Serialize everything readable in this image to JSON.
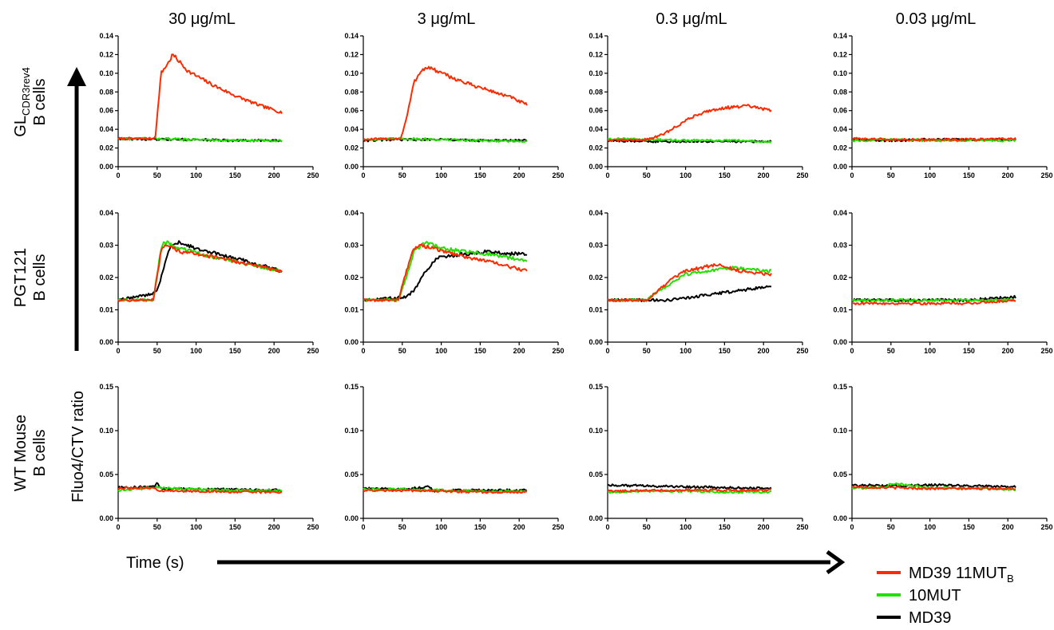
{
  "figure": {
    "column_titles": [
      "30 μg/mL",
      "3 μg/mL",
      "0.3 μg/mL",
      "0.03 μg/mL"
    ],
    "rows": [
      {
        "line1": "GL",
        "line1_sub": "CDR3rev4",
        "line2": "B cells"
      },
      {
        "line1": "PGT121",
        "line1_sub": "",
        "line2": "B cells"
      },
      {
        "line1": "WT Mouse",
        "line1_sub": "",
        "line2": "B cells"
      }
    ],
    "y_axis_title": "Fluo4/CTV ratio",
    "x_axis_title": "Time (s)",
    "legend": [
      {
        "label": "MD39 11MUT",
        "sub": "B",
        "color": "#ff2a00"
      },
      {
        "label": "10MUT",
        "sub": "",
        "color": "#22e000"
      },
      {
        "label": "MD39",
        "sub": "",
        "color": "#000000"
      }
    ]
  },
  "chart_data": {
    "type": "line",
    "x_range": [
      0,
      250
    ],
    "x_ticks": [
      "0",
      "50",
      "100",
      "150",
      "200",
      "250"
    ],
    "row_axes": [
      {
        "ylim": [
          0,
          0.14
        ],
        "y_ticks": [
          "0.00",
          "0.02",
          "0.04",
          "0.06",
          "0.08",
          "0.10",
          "0.12",
          "0.14"
        ]
      },
      {
        "ylim": [
          0,
          0.04
        ],
        "y_ticks": [
          "0.00",
          "0.01",
          "0.02",
          "0.03",
          "0.04"
        ]
      },
      {
        "ylim": [
          0,
          0.15
        ],
        "y_ticks": [
          "0.00",
          "0.05",
          "0.10",
          "0.15"
        ]
      }
    ],
    "series_names": [
      "MD39 11MUT",
      "10MUT",
      "MD39"
    ],
    "series_colors": [
      "#ff2a00",
      "#22e000",
      "#000000"
    ],
    "panels": [
      {
        "row": 0,
        "col": 0,
        "series": [
          {
            "name": "MD39 11MUT",
            "x": [
              0,
              45,
              48,
              55,
              65,
              70,
              90,
              120,
              150,
              180,
              210
            ],
            "y": [
              0.03,
              0.03,
              0.034,
              0.1,
              0.112,
              0.12,
              0.102,
              0.088,
              0.076,
              0.066,
              0.058
            ]
          },
          {
            "name": "10MUT",
            "x": [
              0,
              50,
              100,
              150,
              210
            ],
            "y": [
              0.03,
              0.03,
              0.029,
              0.028,
              0.028
            ]
          },
          {
            "name": "MD39",
            "x": [
              0,
              50,
              100,
              150,
              210
            ],
            "y": [
              0.03,
              0.029,
              0.029,
              0.028,
              0.028
            ]
          }
        ]
      },
      {
        "row": 0,
        "col": 1,
        "series": [
          {
            "name": "MD39 11MUT",
            "x": [
              0,
              48,
              55,
              65,
              75,
              85,
              100,
              130,
              160,
              190,
              210
            ],
            "y": [
              0.029,
              0.03,
              0.05,
              0.09,
              0.104,
              0.106,
              0.1,
              0.09,
              0.082,
              0.074,
              0.066
            ]
          },
          {
            "name": "10MUT",
            "x": [
              0,
              50,
              100,
              150,
              210
            ],
            "y": [
              0.029,
              0.03,
              0.029,
              0.028,
              0.027
            ]
          },
          {
            "name": "MD39",
            "x": [
              0,
              50,
              100,
              150,
              210
            ],
            "y": [
              0.028,
              0.029,
              0.029,
              0.028,
              0.028
            ]
          }
        ]
      },
      {
        "row": 0,
        "col": 2,
        "series": [
          {
            "name": "MD39 11MUT",
            "x": [
              0,
              50,
              70,
              90,
              110,
              130,
              150,
              180,
              210
            ],
            "y": [
              0.028,
              0.029,
              0.034,
              0.044,
              0.054,
              0.06,
              0.063,
              0.065,
              0.06
            ]
          },
          {
            "name": "10MUT",
            "x": [
              0,
              50,
              100,
              150,
              210
            ],
            "y": [
              0.03,
              0.029,
              0.028,
              0.028,
              0.027
            ]
          },
          {
            "name": "MD39",
            "x": [
              0,
              50,
              100,
              150,
              210
            ],
            "y": [
              0.028,
              0.027,
              0.027,
              0.027,
              0.027
            ]
          }
        ]
      },
      {
        "row": 0,
        "col": 3,
        "series": [
          {
            "name": "MD39 11MUT",
            "x": [
              0,
              50,
              100,
              150,
              210
            ],
            "y": [
              0.03,
              0.029,
              0.029,
              0.029,
              0.03
            ]
          },
          {
            "name": "10MUT",
            "x": [
              0,
              50,
              100,
              150,
              210
            ],
            "y": [
              0.028,
              0.029,
              0.028,
              0.028,
              0.028
            ]
          },
          {
            "name": "MD39",
            "x": [
              0,
              50,
              100,
              150,
              210
            ],
            "y": [
              0.029,
              0.028,
              0.029,
              0.029,
              0.029
            ]
          }
        ]
      },
      {
        "row": 1,
        "col": 0,
        "series": [
          {
            "name": "MD39 11MUT",
            "x": [
              0,
              45,
              50,
              55,
              60,
              80,
              110,
              150,
              210
            ],
            "y": [
              0.013,
              0.013,
              0.02,
              0.028,
              0.03,
              0.028,
              0.027,
              0.025,
              0.022
            ]
          },
          {
            "name": "10MUT",
            "x": [
              0,
              45,
              50,
              55,
              60,
              80,
              110,
              150,
              210
            ],
            "y": [
              0.013,
              0.013,
              0.021,
              0.029,
              0.031,
              0.029,
              0.027,
              0.025,
              0.022
            ]
          },
          {
            "name": "MD39",
            "x": [
              0,
              45,
              50,
              60,
              65,
              75,
              100,
              150,
              210
            ],
            "y": [
              0.013,
              0.015,
              0.016,
              0.024,
              0.029,
              0.031,
              0.029,
              0.026,
              0.022
            ]
          }
        ]
      },
      {
        "row": 1,
        "col": 1,
        "series": [
          {
            "name": "MD39 11MUT",
            "x": [
              0,
              45,
              55,
              65,
              75,
              90,
              120,
              160,
              210
            ],
            "y": [
              0.013,
              0.013,
              0.022,
              0.029,
              0.03,
              0.029,
              0.027,
              0.025,
              0.022
            ]
          },
          {
            "name": "10MUT",
            "x": [
              0,
              45,
              55,
              65,
              80,
              100,
              130,
              170,
              210
            ],
            "y": [
              0.013,
              0.013,
              0.02,
              0.028,
              0.031,
              0.029,
              0.028,
              0.027,
              0.025
            ]
          },
          {
            "name": "MD39",
            "x": [
              0,
              55,
              65,
              80,
              95,
              120,
              160,
              210
            ],
            "y": [
              0.013,
              0.014,
              0.016,
              0.022,
              0.026,
              0.027,
              0.028,
              0.027
            ]
          }
        ]
      },
      {
        "row": 1,
        "col": 2,
        "series": [
          {
            "name": "MD39 11MUT",
            "x": [
              0,
              50,
              60,
              80,
              100,
              120,
              140,
              170,
              210
            ],
            "y": [
              0.013,
              0.013,
              0.015,
              0.019,
              0.022,
              0.023,
              0.024,
              0.022,
              0.021
            ]
          },
          {
            "name": "10MUT",
            "x": [
              0,
              50,
              60,
              80,
              100,
              130,
              160,
              210
            ],
            "y": [
              0.013,
              0.013,
              0.015,
              0.018,
              0.021,
              0.022,
              0.023,
              0.022
            ]
          },
          {
            "name": "MD39",
            "x": [
              0,
              50,
              80,
              110,
              140,
              170,
              200,
              210
            ],
            "y": [
              0.013,
              0.013,
              0.013,
              0.014,
              0.015,
              0.016,
              0.017,
              0.017
            ]
          }
        ]
      },
      {
        "row": 1,
        "col": 3,
        "series": [
          {
            "name": "MD39 11MUT",
            "x": [
              0,
              50,
              100,
              150,
              210
            ],
            "y": [
              0.012,
              0.012,
              0.012,
              0.012,
              0.013
            ]
          },
          {
            "name": "10MUT",
            "x": [
              0,
              50,
              100,
              150,
              210
            ],
            "y": [
              0.013,
              0.013,
              0.013,
              0.013,
              0.013
            ]
          },
          {
            "name": "MD39",
            "x": [
              0,
              50,
              100,
              150,
              210
            ],
            "y": [
              0.013,
              0.013,
              0.013,
              0.013,
              0.014
            ]
          }
        ]
      },
      {
        "row": 2,
        "col": 0,
        "series": [
          {
            "name": "MD39 11MUT",
            "x": [
              0,
              45,
              55,
              100,
              150,
              210
            ],
            "y": [
              0.034,
              0.035,
              0.031,
              0.031,
              0.03,
              0.03
            ]
          },
          {
            "name": "10MUT",
            "x": [
              0,
              50,
              100,
              150,
              210
            ],
            "y": [
              0.032,
              0.035,
              0.033,
              0.032,
              0.032
            ]
          },
          {
            "name": "MD39",
            "x": [
              0,
              45,
              50,
              55,
              100,
              150,
              210
            ],
            "y": [
              0.035,
              0.036,
              0.04,
              0.034,
              0.033,
              0.033,
              0.032
            ]
          }
        ]
      },
      {
        "row": 2,
        "col": 1,
        "series": [
          {
            "name": "MD39 11MUT",
            "x": [
              0,
              50,
              100,
              150,
              210
            ],
            "y": [
              0.032,
              0.032,
              0.031,
              0.03,
              0.03
            ]
          },
          {
            "name": "10MUT",
            "x": [
              0,
              50,
              100,
              150,
              210
            ],
            "y": [
              0.033,
              0.033,
              0.032,
              0.031,
              0.031
            ]
          },
          {
            "name": "MD39",
            "x": [
              0,
              50,
              85,
              90,
              100,
              150,
              210
            ],
            "y": [
              0.034,
              0.033,
              0.036,
              0.031,
              0.032,
              0.032,
              0.032
            ]
          }
        ]
      },
      {
        "row": 2,
        "col": 2,
        "series": [
          {
            "name": "MD39 11MUT",
            "x": [
              0,
              50,
              100,
              150,
              210
            ],
            "y": [
              0.031,
              0.032,
              0.032,
              0.032,
              0.032
            ]
          },
          {
            "name": "10MUT",
            "x": [
              0,
              50,
              100,
              150,
              210
            ],
            "y": [
              0.03,
              0.031,
              0.031,
              0.03,
              0.03
            ]
          },
          {
            "name": "MD39",
            "x": [
              0,
              50,
              100,
              150,
              210
            ],
            "y": [
              0.038,
              0.037,
              0.036,
              0.035,
              0.034
            ]
          }
        ]
      },
      {
        "row": 2,
        "col": 3,
        "series": [
          {
            "name": "MD39 11MUT",
            "x": [
              0,
              50,
              100,
              150,
              210
            ],
            "y": [
              0.036,
              0.035,
              0.034,
              0.034,
              0.034
            ]
          },
          {
            "name": "10MUT",
            "x": [
              0,
              45,
              50,
              100,
              150,
              210
            ],
            "y": [
              0.034,
              0.036,
              0.04,
              0.035,
              0.034,
              0.033
            ]
          },
          {
            "name": "MD39",
            "x": [
              0,
              50,
              100,
              150,
              210
            ],
            "y": [
              0.038,
              0.037,
              0.038,
              0.037,
              0.036
            ]
          }
        ]
      }
    ]
  }
}
